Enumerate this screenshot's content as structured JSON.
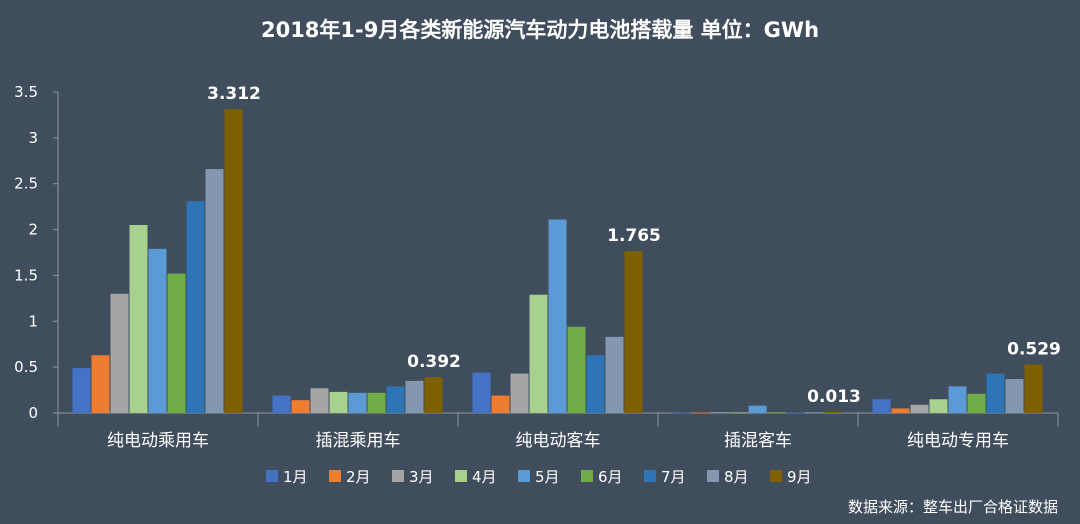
{
  "chart_data": {
    "type": "bar",
    "title": "2018年1-9月各类新能源汽车动力电池搭载量  单位：GWh",
    "categories": [
      "纯电动乘用车",
      "插混乘用车",
      "纯电动客车",
      "插混客车",
      "纯电动专用车"
    ],
    "ylim": [
      0,
      3.5
    ],
    "yticks": [
      "0",
      "0.5",
      "1",
      "1.5",
      "2",
      "2.5",
      "3",
      "3.5"
    ],
    "ytick_values": [
      0,
      0.5,
      1,
      1.5,
      2,
      2.5,
      3,
      3.5
    ],
    "grid": false,
    "legend_position": "bottom",
    "series": [
      {
        "name": "1月",
        "color": "#4472c4",
        "values": [
          0.49,
          0.19,
          0.44,
          0.005,
          0.15
        ]
      },
      {
        "name": "2月",
        "color": "#ed7d31",
        "values": [
          0.63,
          0.14,
          0.19,
          0.005,
          0.05
        ]
      },
      {
        "name": "3月",
        "color": "#a5a5a5",
        "values": [
          1.3,
          0.27,
          0.43,
          0.008,
          0.09
        ]
      },
      {
        "name": "4月",
        "color": "#a9d18e",
        "values": [
          2.05,
          0.23,
          1.29,
          0.006,
          0.15
        ]
      },
      {
        "name": "5月",
        "color": "#5b9bd5",
        "values": [
          1.79,
          0.22,
          2.11,
          0.08,
          0.29
        ]
      },
      {
        "name": "6月",
        "color": "#70ad47",
        "values": [
          1.52,
          0.22,
          0.94,
          0.008,
          0.21
        ]
      },
      {
        "name": "7月",
        "color": "#2e75b6",
        "values": [
          2.31,
          0.29,
          0.63,
          0.006,
          0.43
        ]
      },
      {
        "name": "8月",
        "color": "#8497b0",
        "values": [
          2.66,
          0.35,
          0.83,
          0.008,
          0.37
        ]
      },
      {
        "name": "9月",
        "color": "#7f6000",
        "values": [
          3.312,
          0.392,
          1.765,
          0.013,
          0.529
        ]
      }
    ],
    "data_labels": [
      "3.312",
      "0.392",
      "1.765",
      "0.013",
      "0.529"
    ]
  },
  "source": "数据来源：整车出厂合格证数据"
}
